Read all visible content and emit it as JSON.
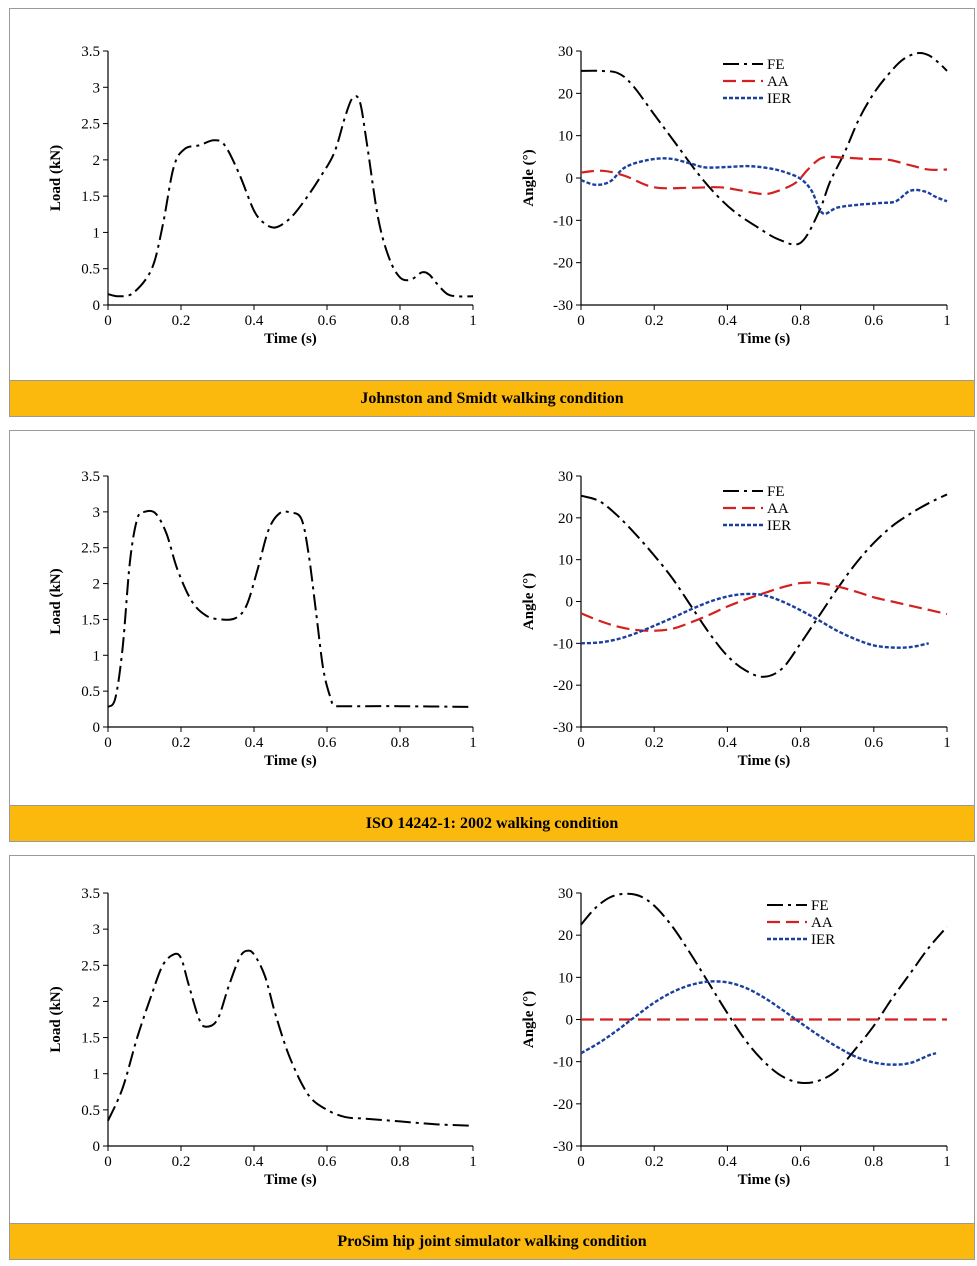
{
  "colors": {
    "caption_bg": "#fbb80d",
    "FE": "#000000",
    "AA": "#d42020",
    "IER": "#1a3f9c"
  },
  "panels": [
    {
      "caption": "Johnston and Smidt walking condition",
      "load": {
        "type": "line",
        "xlabel": "Time (s)",
        "ylabel": "Load (kN)",
        "xlim": [
          0,
          1
        ],
        "ylim": [
          0,
          3.5
        ],
        "xticks": [
          "0",
          "0.2",
          "0.4",
          "0.6",
          "0.8",
          "1"
        ],
        "yticks": [
          "0",
          "0.5",
          "1",
          "1.5",
          "2",
          "2.5",
          "3",
          "3.5"
        ],
        "series": [
          {
            "key": "FE",
            "x": [
              0,
              0.03,
              0.07,
              0.12,
              0.15,
              0.18,
              0.21,
              0.25,
              0.29,
              0.32,
              0.36,
              0.4,
              0.43,
              0.46,
              0.5,
              0.54,
              0.58,
              0.62,
              0.65,
              0.67,
              0.69,
              0.71,
              0.74,
              0.77,
              0.8,
              0.83,
              0.86,
              0.88,
              0.9,
              0.93,
              0.96,
              1.0
            ],
            "y": [
              0.15,
              0.12,
              0.17,
              0.5,
              1.1,
              1.9,
              2.15,
              2.2,
              2.27,
              2.2,
              1.8,
              1.3,
              1.12,
              1.07,
              1.2,
              1.45,
              1.75,
              2.1,
              2.6,
              2.85,
              2.8,
              2.2,
              1.2,
              0.65,
              0.38,
              0.35,
              0.45,
              0.42,
              0.3,
              0.15,
              0.12,
              0.12
            ]
          }
        ]
      },
      "angle": {
        "type": "line",
        "xlabel": "Time (s)",
        "ylabel": "Angle (°)",
        "xlim": [
          0,
          1
        ],
        "ylim": [
          -30,
          30
        ],
        "xticks": [
          "0",
          "0.2",
          "0.4",
          "0.8",
          "0.6",
          "1"
        ],
        "yticks": [
          "-30",
          "-20",
          "-10",
          "0",
          "10",
          "20",
          "30"
        ],
        "legend": [
          "FE",
          "AA",
          "IER"
        ],
        "series": [
          {
            "key": "FE",
            "x": [
              0,
              0.05,
              0.1,
              0.14,
              0.2,
              0.26,
              0.32,
              0.37,
              0.42,
              0.48,
              0.54,
              0.6,
              0.65,
              0.68,
              0.72,
              0.76,
              0.8,
              0.84,
              0.88,
              0.92,
              0.95,
              0.98,
              1.0
            ],
            "y": [
              25.3,
              25.3,
              24.8,
              22,
              15,
              8,
              1,
              -4,
              -8,
              -11.5,
              -14.5,
              -15.3,
              -8,
              -1,
              6,
              14,
              20,
              24.5,
              28,
              29.5,
              29,
              27,
              25.3
            ]
          },
          {
            "key": "AA",
            "x": [
              0,
              0.06,
              0.12,
              0.2,
              0.3,
              0.38,
              0.44,
              0.5,
              0.54,
              0.58,
              0.6,
              0.62,
              0.66,
              0.72,
              0.78,
              0.84,
              0.9,
              0.95,
              1.0
            ],
            "y": [
              1.3,
              1.7,
              0.5,
              -2.2,
              -2.3,
              -2.2,
              -3,
              -3.8,
              -3,
              -1.5,
              0,
              2,
              4.8,
              4.8,
              4.5,
              4.3,
              3,
              2,
              2
            ]
          },
          {
            "key": "IER",
            "x": [
              0,
              0.04,
              0.08,
              0.12,
              0.18,
              0.24,
              0.3,
              0.34,
              0.4,
              0.46,
              0.52,
              0.56,
              0.6,
              0.63,
              0.66,
              0.7,
              0.76,
              0.82,
              0.86,
              0.9,
              0.94,
              0.97,
              1.0
            ],
            "y": [
              -0.5,
              -1.6,
              -0.8,
              2.5,
              4.2,
              4.6,
              3.4,
              2.5,
              2.6,
              2.8,
              2.2,
              1.3,
              -0.2,
              -3,
              -8.3,
              -7,
              -6.3,
              -5.9,
              -5.5,
              -3,
              -3.2,
              -4.5,
              -5.5
            ]
          }
        ]
      }
    },
    {
      "caption": "ISO 14242-1: 2002 walking condition",
      "load": {
        "type": "line",
        "xlabel": "Time (s)",
        "ylabel": "Load (kN)",
        "xlim": [
          0,
          1
        ],
        "ylim": [
          0,
          3.5
        ],
        "xticks": [
          "0",
          "0.2",
          "0.4",
          "0.6",
          "0.8",
          "1"
        ],
        "yticks": [
          "0",
          "0.5",
          "1",
          "1.5",
          "2",
          "2.5",
          "3",
          "3.5"
        ],
        "series": [
          {
            "key": "FE",
            "x": [
              0,
              0.02,
              0.04,
              0.06,
              0.08,
              0.1,
              0.13,
              0.16,
              0.19,
              0.23,
              0.27,
              0.31,
              0.35,
              0.38,
              0.41,
              0.44,
              0.47,
              0.5,
              0.53,
              0.55,
              0.57,
              0.59,
              0.61,
              0.62,
              0.65,
              0.8,
              1.0
            ],
            "y": [
              0.28,
              0.4,
              1.1,
              2.3,
              2.9,
              3.0,
              2.98,
              2.7,
              2.2,
              1.75,
              1.55,
              1.5,
              1.52,
              1.7,
              2.2,
              2.75,
              2.98,
              2.99,
              2.9,
              2.4,
              1.6,
              0.8,
              0.4,
              0.3,
              0.29,
              0.29,
              0.28
            ]
          }
        ]
      },
      "angle": {
        "type": "line",
        "xlabel": "Time (s)",
        "ylabel": "Angle (°)",
        "xlim": [
          0,
          1
        ],
        "ylim": [
          -30,
          30
        ],
        "xticks": [
          "0",
          "0.2",
          "0.4",
          "0.8",
          "0.6",
          "1"
        ],
        "yticks": [
          "-30",
          "-20",
          "-10",
          "0",
          "10",
          "20",
          "30"
        ],
        "legend": [
          "FE",
          "AA",
          "IER"
        ],
        "series": [
          {
            "key": "FE",
            "x": [
              0,
              0.05,
              0.1,
              0.15,
              0.2,
              0.25,
              0.3,
              0.35,
              0.4,
              0.45,
              0.5,
              0.55,
              0.6,
              0.65,
              0.7,
              0.75,
              0.8,
              0.85,
              0.9,
              0.95,
              1.0
            ],
            "y": [
              25.3,
              24,
              20.5,
              16,
              11,
              5.5,
              -1,
              -7.5,
              -13,
              -16.5,
              -18,
              -16,
              -10,
              -3.5,
              3,
              9,
              14,
              18,
              21,
              23.5,
              25.6
            ]
          },
          {
            "key": "AA",
            "x": [
              0,
              0.05,
              0.1,
              0.15,
              0.2,
              0.25,
              0.3,
              0.35,
              0.4,
              0.45,
              0.5,
              0.55,
              0.6,
              0.65,
              0.7,
              0.75,
              0.8,
              0.85,
              0.9,
              0.95,
              1.0
            ],
            "y": [
              -2.8,
              -4.6,
              -6,
              -6.8,
              -7,
              -6.5,
              -5,
              -3.2,
              -1.2,
              0.5,
              2,
              3.4,
              4.4,
              4.4,
              3.6,
              2.4,
              1,
              0,
              -1,
              -2,
              -3
            ]
          },
          {
            "key": "IER",
            "x": [
              0,
              0.05,
              0.1,
              0.15,
              0.2,
              0.25,
              0.3,
              0.35,
              0.4,
              0.45,
              0.5,
              0.55,
              0.6,
              0.65,
              0.7,
              0.75,
              0.8,
              0.85,
              0.9,
              0.95
            ],
            "y": [
              -10,
              -9.8,
              -9,
              -7.6,
              -5.8,
              -3.9,
              -1.9,
              -0.1,
              1.2,
              1.8,
              1.5,
              0,
              -2.1,
              -4.5,
              -7,
              -9,
              -10.5,
              -11,
              -10.9,
              -10
            ]
          }
        ]
      }
    },
    {
      "caption": "ProSim hip joint simulator walking condition",
      "load": {
        "type": "line",
        "xlabel": "Time (s)",
        "ylabel": "Load (kN)",
        "xlim": [
          0,
          1
        ],
        "ylim": [
          0,
          3.5
        ],
        "xticks": [
          "0",
          "0.2",
          "0.4",
          "0.6",
          "0.8",
          "1"
        ],
        "yticks": [
          "0",
          "0.5",
          "1",
          "1.5",
          "2",
          "2.5",
          "3",
          "3.5"
        ],
        "series": [
          {
            "key": "FE",
            "x": [
              0,
              0.04,
              0.08,
              0.12,
              0.15,
              0.18,
              0.2,
              0.22,
              0.25,
              0.27,
              0.3,
              0.33,
              0.36,
              0.38,
              0.4,
              0.43,
              0.46,
              0.5,
              0.55,
              0.6,
              0.65,
              0.7,
              0.8,
              0.9,
              1.0
            ],
            "y": [
              0.35,
              0.8,
              1.5,
              2.1,
              2.5,
              2.65,
              2.6,
              2.25,
              1.75,
              1.65,
              1.75,
              2.2,
              2.6,
              2.7,
              2.65,
              2.35,
              1.8,
              1.2,
              0.7,
              0.5,
              0.4,
              0.38,
              0.34,
              0.3,
              0.28
            ]
          }
        ]
      },
      "angle": {
        "type": "line",
        "xlabel": "Time (s)",
        "ylabel": "Angle (°)",
        "xlim": [
          0,
          1
        ],
        "ylim": [
          -30,
          30
        ],
        "xticks": [
          "0",
          "0.2",
          "0.4",
          "0.6",
          "0.8",
          "1"
        ],
        "yticks": [
          "-30",
          "-20",
          "-10",
          "0",
          "10",
          "20",
          "30"
        ],
        "legend": [
          "FE",
          "AA",
          "IER"
        ],
        "series": [
          {
            "key": "FE",
            "x": [
              0,
              0.04,
              0.08,
              0.12,
              0.16,
              0.2,
              0.25,
              0.3,
              0.35,
              0.4,
              0.45,
              0.5,
              0.55,
              0.6,
              0.65,
              0.7,
              0.75,
              0.8,
              0.85,
              0.9,
              0.95,
              1.0
            ],
            "y": [
              22.5,
              26.5,
              29,
              29.8,
              29.3,
              27,
              22,
              15.5,
              8.5,
              1.5,
              -5,
              -10,
              -13.5,
              -15,
              -14.5,
              -12,
              -7,
              -1.5,
              5,
              11,
              17,
              22
            ]
          },
          {
            "key": "AA",
            "x": [
              0,
              1.0
            ],
            "y": [
              0,
              0
            ]
          },
          {
            "key": "IER",
            "x": [
              0,
              0.05,
              0.1,
              0.15,
              0.2,
              0.25,
              0.3,
              0.35,
              0.4,
              0.45,
              0.5,
              0.55,
              0.6,
              0.65,
              0.7,
              0.75,
              0.8,
              0.85,
              0.9,
              0.95,
              0.97
            ],
            "y": [
              -8,
              -5.5,
              -2.5,
              0.8,
              4,
              6.5,
              8.2,
              9,
              8.8,
              7.5,
              5.2,
              2.3,
              -0.8,
              -3.8,
              -6.5,
              -8.8,
              -10.2,
              -10.7,
              -10.3,
              -8.5,
              -8
            ]
          }
        ]
      }
    }
  ]
}
